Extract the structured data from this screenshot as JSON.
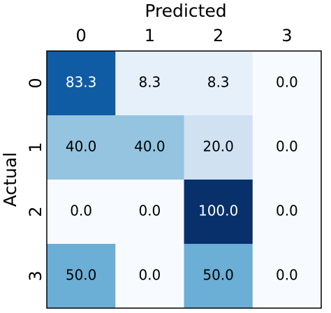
{
  "chart_data": {
    "type": "heatmap",
    "title": "Predicted",
    "y_label": "Actual",
    "x_categories": [
      "0",
      "1",
      "2",
      "3"
    ],
    "y_categories": [
      "0",
      "1",
      "2",
      "3"
    ],
    "values": [
      [
        83.3,
        8.3,
        8.3,
        0
      ],
      [
        40,
        40,
        20,
        0
      ],
      [
        0,
        0,
        100,
        0
      ],
      [
        50,
        0,
        50,
        0
      ]
    ],
    "value_labels": [
      [
        "83.3",
        "8.3",
        "8.3",
        "0.0"
      ],
      [
        "40.0",
        "40.0",
        "20.0",
        "0.0"
      ],
      [
        "0.0",
        "0.0",
        "100.0",
        "0.0"
      ],
      [
        "50.0",
        "0.0",
        "50.0",
        "0.0"
      ]
    ],
    "clim": [
      0,
      100
    ],
    "colormap": [
      "#f7fbff",
      "#deebf7",
      "#c6dbef",
      "#9ecae1",
      "#6baed6",
      "#4292c6",
      "#2171b5",
      "#08519c",
      "#08306b"
    ]
  }
}
